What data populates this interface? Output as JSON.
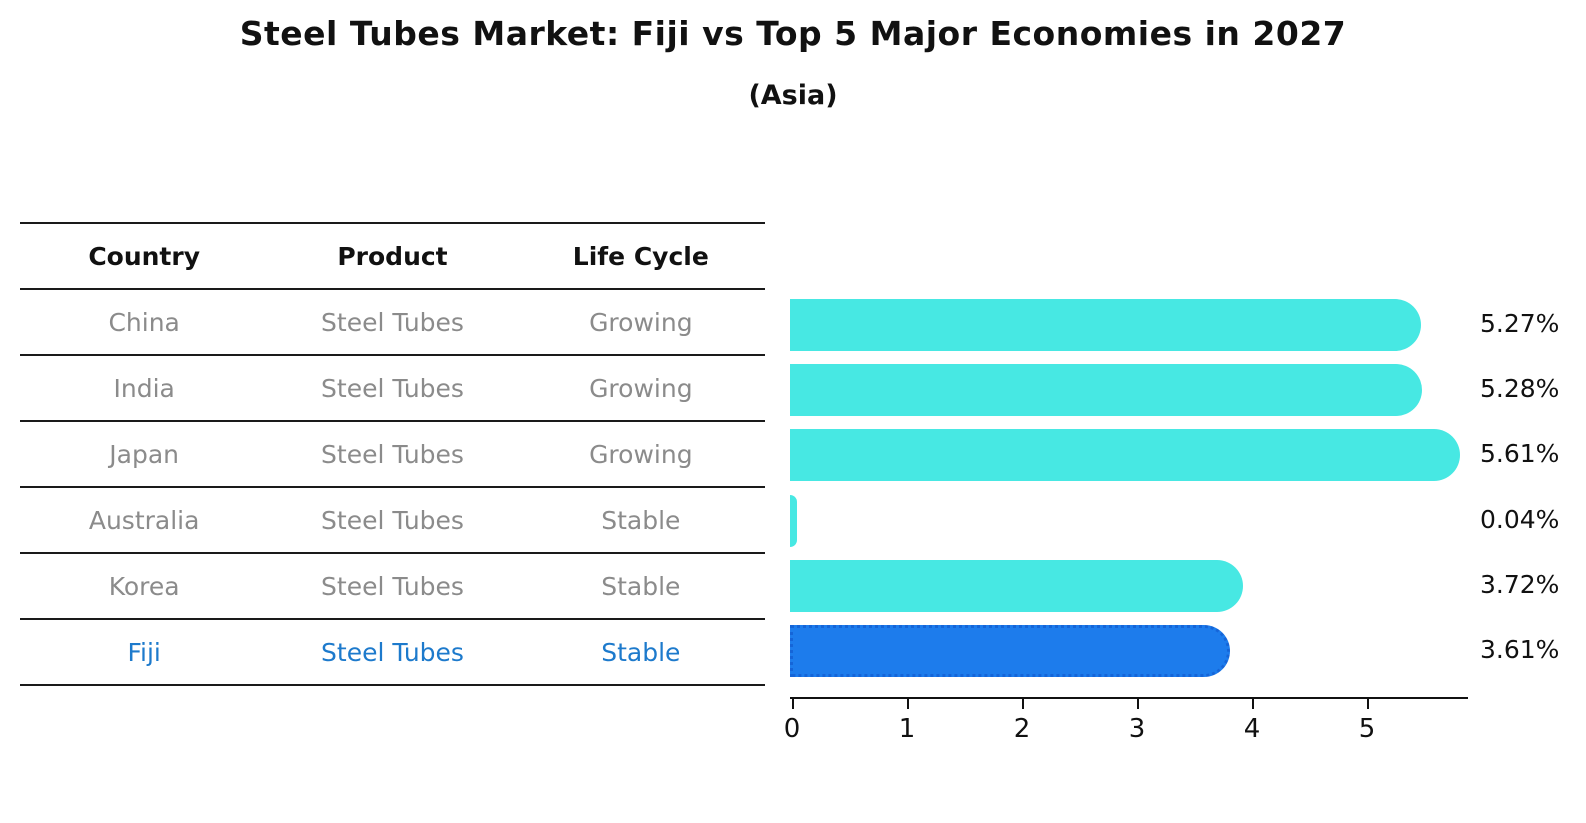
{
  "title": "Steel Tubes Market: Fiji vs Top 5 Major Economies in 2027",
  "subtitle": "(Asia)",
  "table": {
    "headers": [
      "Country",
      "Product",
      "Life Cycle"
    ],
    "rows": [
      {
        "country": "China",
        "product": "Steel Tubes",
        "life_cycle": "Growing",
        "highlight": false
      },
      {
        "country": "India",
        "product": "Steel Tubes",
        "life_cycle": "Growing",
        "highlight": false
      },
      {
        "country": "Japan",
        "product": "Steel Tubes",
        "life_cycle": "Growing",
        "highlight": false
      },
      {
        "country": "Australia",
        "product": "Steel Tubes",
        "life_cycle": "Stable",
        "highlight": false
      },
      {
        "country": "Korea",
        "product": "Steel Tubes",
        "life_cycle": "Stable",
        "highlight": false
      },
      {
        "country": "Fiji",
        "product": "Steel Tubes",
        "life_cycle": "Stable",
        "highlight": true
      }
    ]
  },
  "chart_data": {
    "type": "bar",
    "orientation": "horizontal",
    "categories": [
      "China",
      "India",
      "Japan",
      "Australia",
      "Korea",
      "Fiji"
    ],
    "values": [
      5.27,
      5.28,
      5.61,
      0.04,
      3.72,
      3.61
    ],
    "value_labels": [
      "5.27%",
      "5.28%",
      "5.61%",
      "0.04%",
      "3.72%",
      "3.61%"
    ],
    "x_ticks": [
      "0",
      "1",
      "2",
      "3",
      "4",
      "5"
    ],
    "xlim": [
      0,
      5.88
    ],
    "grid": false,
    "legend": "none",
    "bar_color": "#47E8E3",
    "highlight_color": "#1D7CEC",
    "highlight_border_color": "#1565D8",
    "highlight_text_color": "#1D7ACC",
    "text_color": "#111111",
    "muted_text_color": "#8B8B8B",
    "highlight_index": 5
  }
}
